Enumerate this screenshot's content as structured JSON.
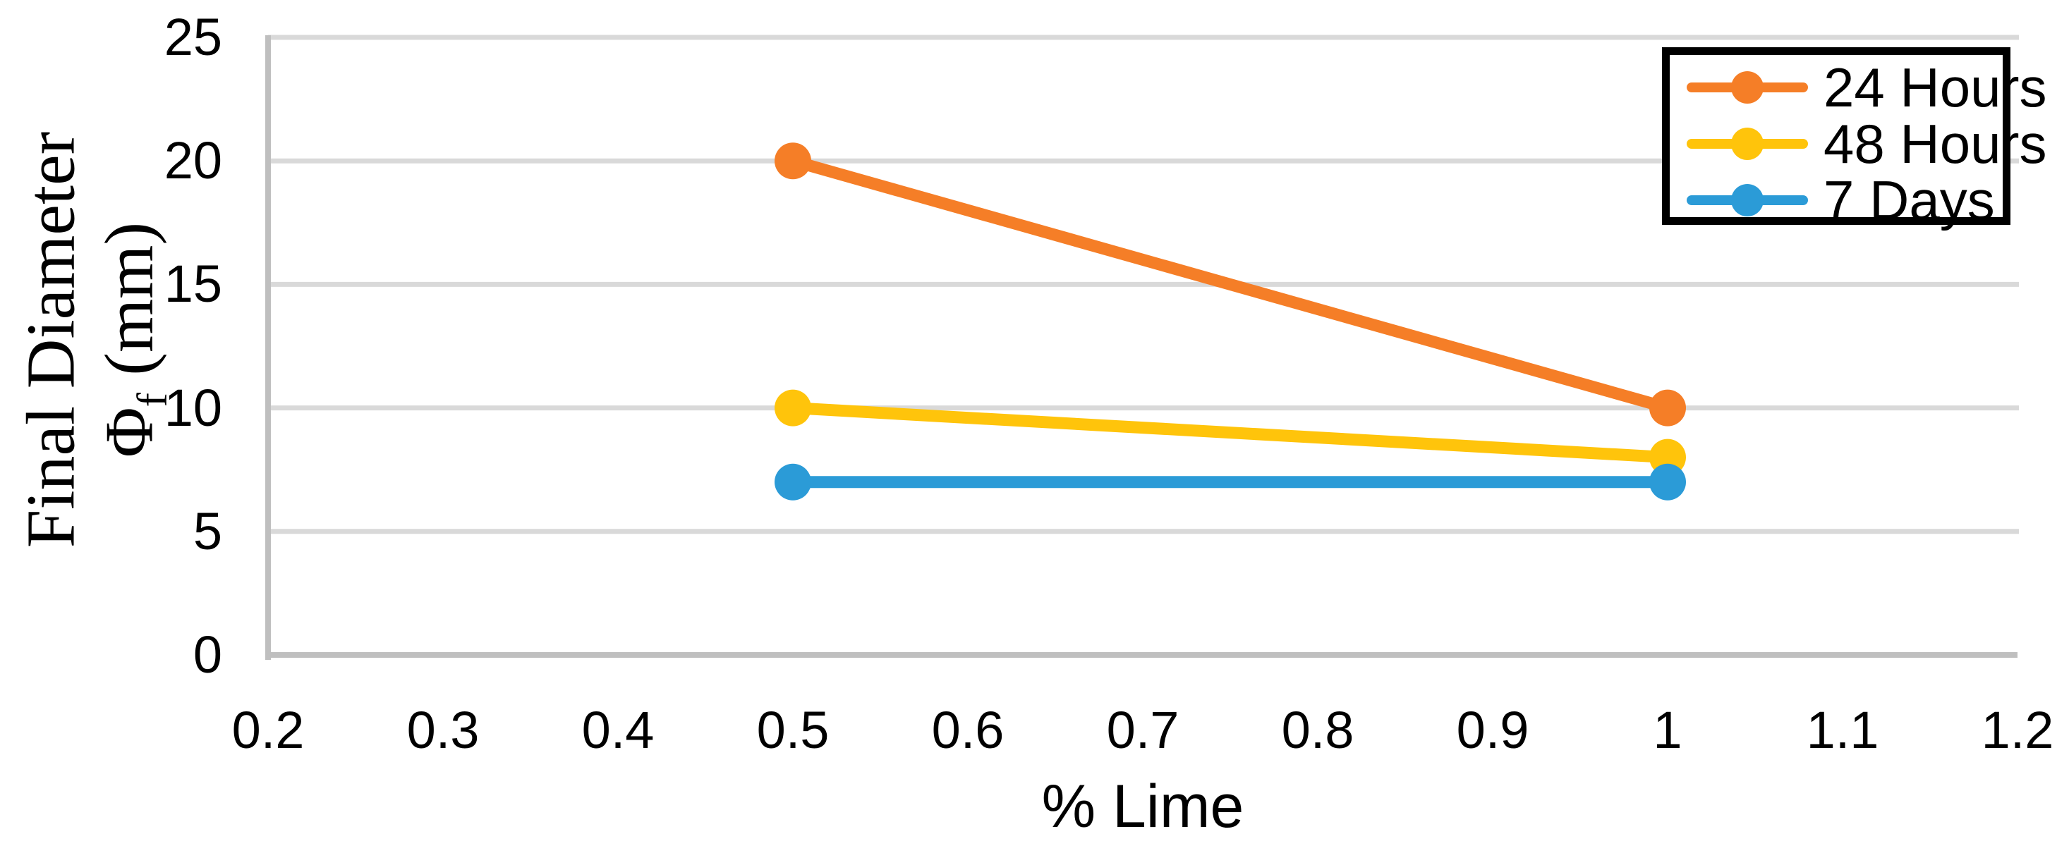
{
  "chart_data": {
    "type": "line",
    "title": "",
    "xlabel": "% Lime",
    "ylabel_line1": "Final Diameter",
    "ylabel_phi": "Φ",
    "ylabel_phi_sub": "f",
    "ylabel_units": " (mm)",
    "xlim": [
      0.2,
      1.2
    ],
    "ylim": [
      0,
      25
    ],
    "xticks": [
      {
        "value": 0.2,
        "label": "0.2"
      },
      {
        "value": 0.3,
        "label": "0.3"
      },
      {
        "value": 0.4,
        "label": "0.4"
      },
      {
        "value": 0.5,
        "label": "0.5"
      },
      {
        "value": 0.6,
        "label": "0.6"
      },
      {
        "value": 0.7,
        "label": "0.7"
      },
      {
        "value": 0.8,
        "label": "0.8"
      },
      {
        "value": 0.9,
        "label": "0.9"
      },
      {
        "value": 1.0,
        "label": "1"
      },
      {
        "value": 1.1,
        "label": "1.1"
      },
      {
        "value": 1.2,
        "label": "1.2"
      }
    ],
    "yticks": [
      {
        "value": 0,
        "label": "0"
      },
      {
        "value": 5,
        "label": "5"
      },
      {
        "value": 10,
        "label": "10"
      },
      {
        "value": 15,
        "label": "15"
      },
      {
        "value": 20,
        "label": "20"
      },
      {
        "value": 25,
        "label": "25"
      }
    ],
    "series": [
      {
        "name": "24 Hours",
        "color": "#F57E27",
        "x": [
          0.5,
          1.0
        ],
        "y": [
          20,
          10
        ]
      },
      {
        "name": "48 Hours",
        "color": "#FFC40B",
        "x": [
          0.5,
          1.0
        ],
        "y": [
          10,
          8
        ]
      },
      {
        "name": "7 Days",
        "color": "#2B9BD7",
        "x": [
          0.5,
          1.0
        ],
        "y": [
          7,
          7
        ]
      }
    ],
    "legend_position": "top-right",
    "grid": "horizontal",
    "colors": {
      "gridline": "#D9D9D9",
      "axis_line": "#BFBFBF",
      "text": "#000000",
      "legend_border": "#000000",
      "background": "#FFFFFF"
    }
  }
}
